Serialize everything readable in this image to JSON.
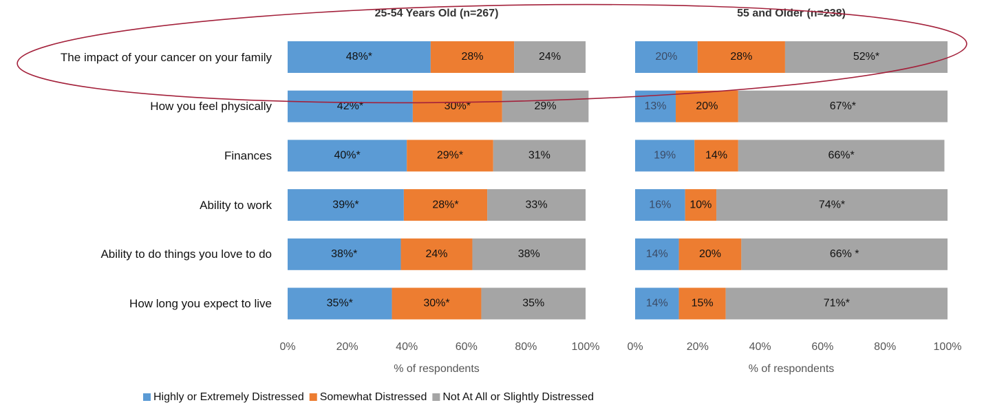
{
  "chart_data": [
    {
      "type": "bar",
      "orientation": "horizontal",
      "stacked": true,
      "title": "25-54 Years  Old  (n=267)",
      "categories": [
        "The impact of your cancer on your family",
        "How you feel physically",
        "Finances",
        "Ability to work",
        "Ability to do things you love to do",
        "How long you expect to live"
      ],
      "series": [
        {
          "name": "Highly or Extremely Distressed",
          "color": "#5b9bd5",
          "values": [
            48,
            42,
            40,
            39,
            38,
            35
          ],
          "value_labels": [
            "48%*",
            "42%*",
            "40%*",
            "39%*",
            "38%*",
            "35%*"
          ]
        },
        {
          "name": "Somewhat Distressed",
          "color": "#ed7d31",
          "values": [
            28,
            30,
            29,
            28,
            24,
            30
          ],
          "value_labels": [
            "28%",
            "30%*",
            "29%*",
            "28%*",
            "24%",
            "30%*"
          ]
        },
        {
          "name": "Not At All or Slightly Distressed",
          "color": "#a5a5a5",
          "values": [
            24,
            29,
            31,
            33,
            38,
            35
          ],
          "value_labels": [
            "24%",
            "29%",
            "31%",
            "33%",
            "38%",
            "35%"
          ]
        }
      ],
      "xlim": [
        0,
        100
      ],
      "xticks": [
        {
          "value": 0,
          "label": "0%"
        },
        {
          "value": 20,
          "label": "20%"
        },
        {
          "value": 40,
          "label": "40%"
        },
        {
          "value": 60,
          "label": "60%"
        },
        {
          "value": 80,
          "label": "80%"
        },
        {
          "value": 100,
          "label": "100%"
        }
      ],
      "xlabel": "% of respondents",
      "legend": "bottom"
    },
    {
      "type": "bar",
      "orientation": "horizontal",
      "stacked": true,
      "title": "55 and Older  (n=238)",
      "series": [
        {
          "color": "#5b9bd5",
          "values": [
            20,
            13,
            19,
            16,
            14,
            14
          ],
          "value_labels": [
            "20%",
            "13%",
            "19%",
            "16%",
            "14%",
            "14%"
          ]
        },
        {
          "color": "#ed7d31",
          "values": [
            28,
            20,
            14,
            10,
            20,
            15
          ],
          "value_labels": [
            "28%",
            "20%",
            "14%",
            "10%",
            "20%",
            "15%"
          ]
        },
        {
          "color": "#a5a5a5",
          "values": [
            52,
            67,
            66,
            74,
            66,
            71
          ],
          "value_labels": [
            "52%*",
            "67%*",
            "66%*",
            "74%*",
            "66% *",
            "71%*"
          ]
        }
      ],
      "xlim": [
        0,
        100
      ],
      "xticks": [
        {
          "value": 0,
          "label": "0%"
        },
        {
          "value": 20,
          "label": "20%"
        },
        {
          "value": 40,
          "label": "40%"
        },
        {
          "value": 60,
          "label": "60%"
        },
        {
          "value": 80,
          "label": "80%"
        },
        {
          "value": 100,
          "label": "100%"
        }
      ],
      "xlabel": "% of respondents"
    }
  ]
}
